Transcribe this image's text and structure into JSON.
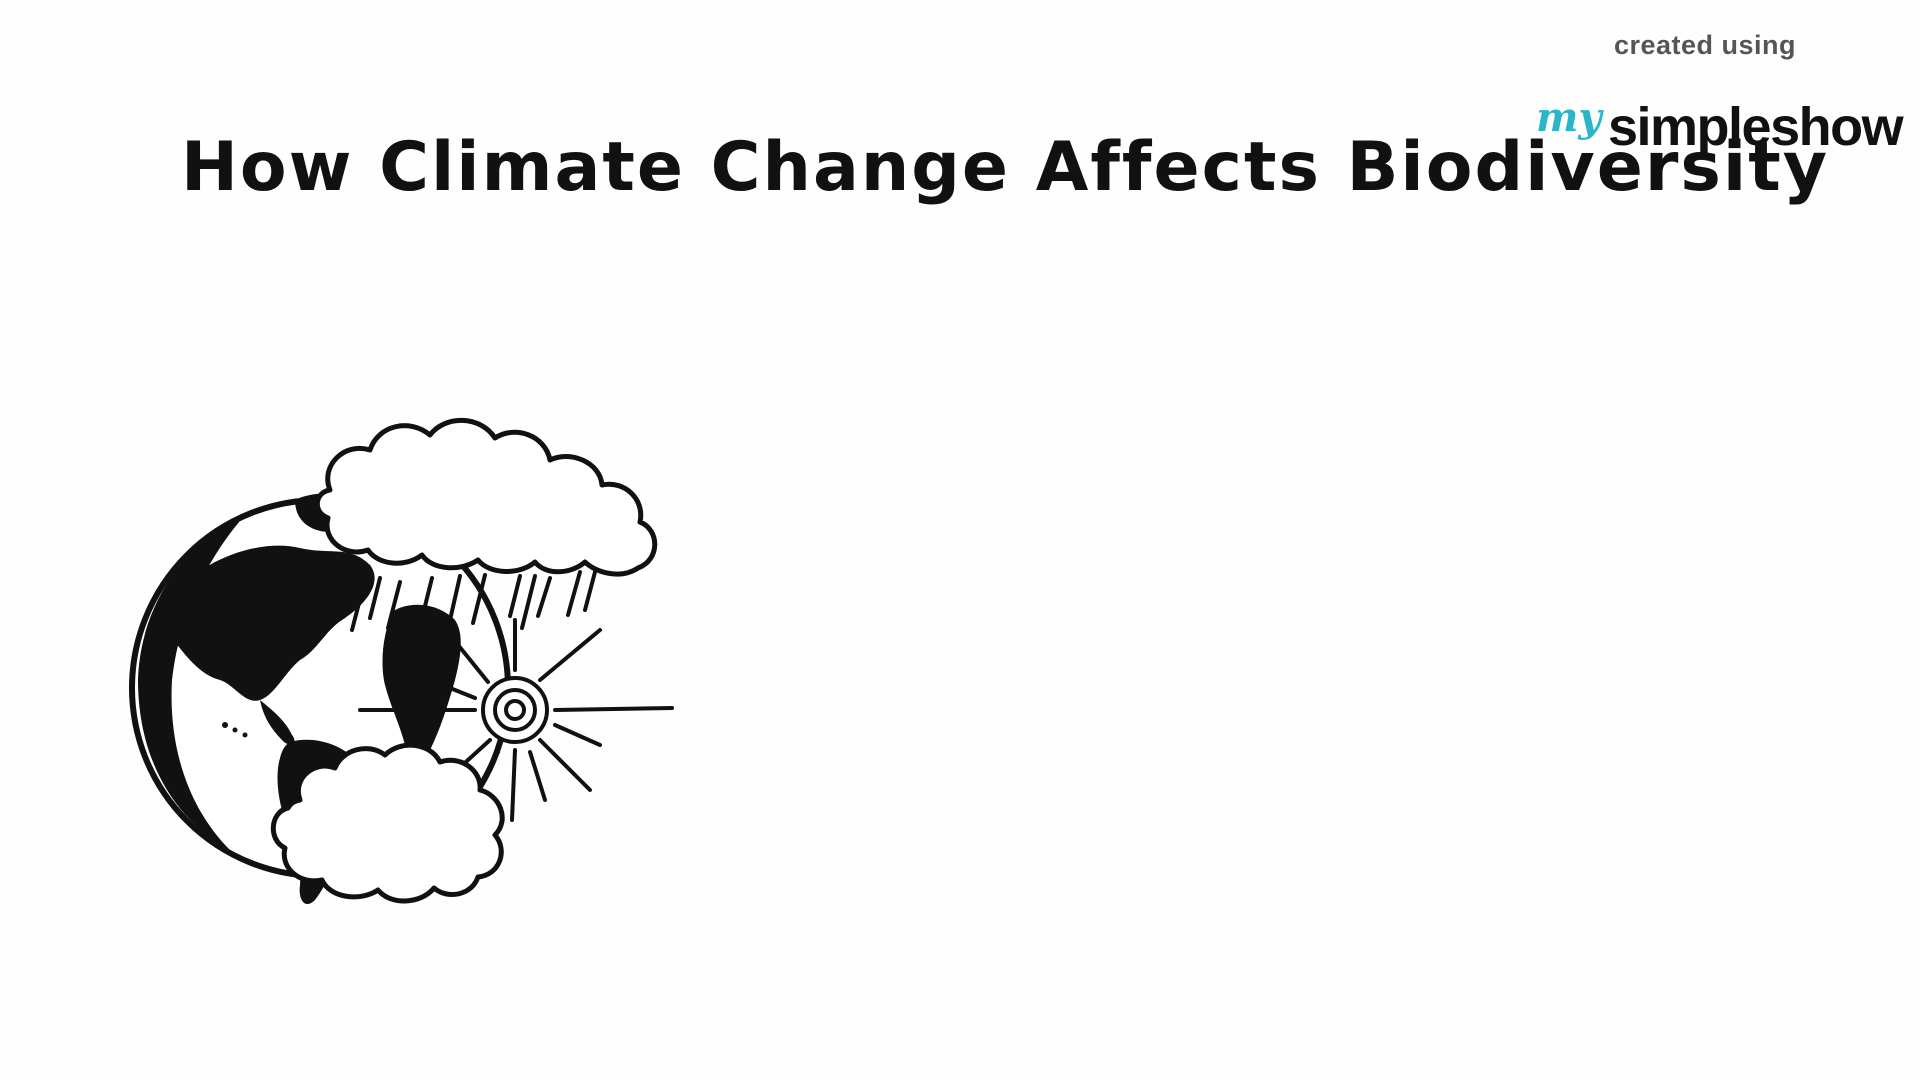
{
  "slide": {
    "title": "How Climate Change Affects Biodiversity"
  },
  "watermark": {
    "created_label": "created using",
    "brand_prefix": "my",
    "brand_name": "simpleshow"
  },
  "illustration": {
    "icon": "earth-weather-icon",
    "elements": [
      "globe",
      "rain-clouds",
      "sun",
      "cloud"
    ]
  },
  "colors": {
    "background": "#fefefe",
    "ink": "#111111",
    "brand_accent": "#2ab5c8",
    "watermark_gray": "#555555"
  }
}
